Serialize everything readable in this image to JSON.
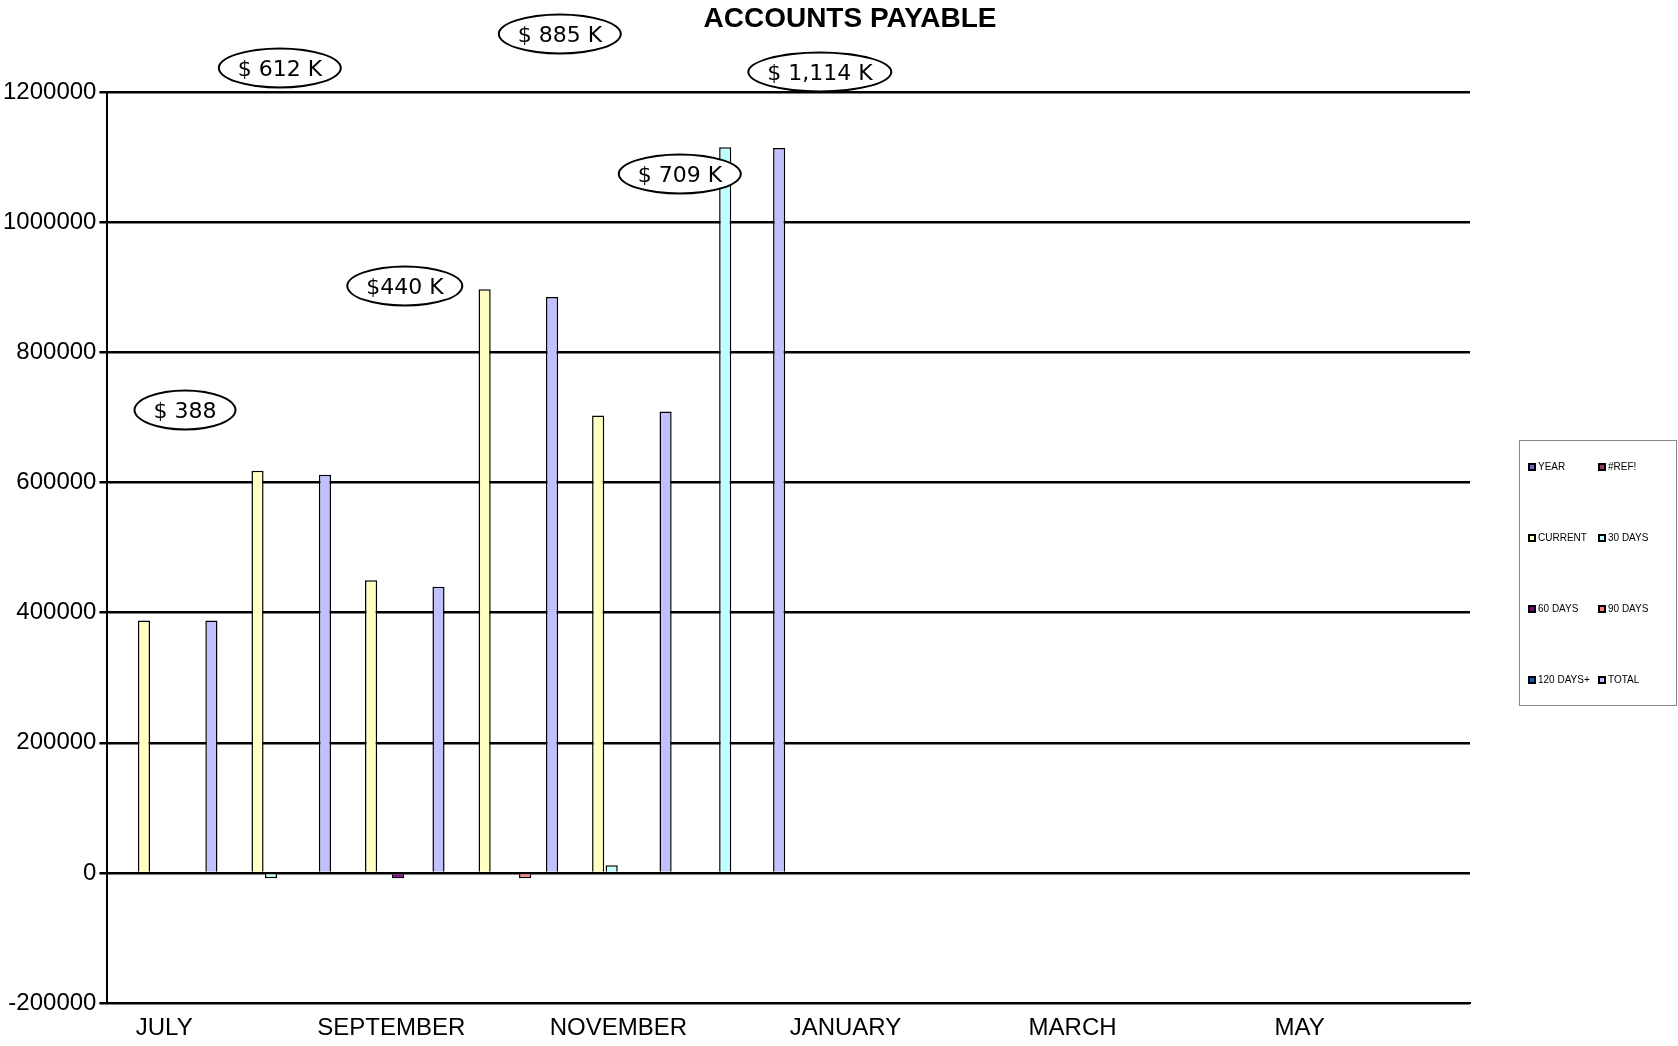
{
  "chart_data": {
    "type": "bar",
    "title": "ACCOUNTS PAYABLE",
    "categories": [
      "JULY",
      null,
      "SEPTEMBER",
      null,
      "NOVEMBER",
      null,
      "JANUARY",
      null,
      "MARCH",
      null,
      "MAY",
      null
    ],
    "series": [
      {
        "name": "YEAR",
        "color": "#6666cc",
        "values": [
          0,
          0,
          0,
          0,
          0,
          0,
          0,
          0,
          0,
          0,
          0,
          0
        ]
      },
      {
        "name": "#REF!",
        "color": "#993366",
        "values": [
          0,
          0,
          0,
          0,
          0,
          0,
          0,
          0,
          0,
          0,
          0,
          0
        ]
      },
      {
        "name": "CURRENT",
        "color": "#ffffc0",
        "values": [
          388000,
          618000,
          450000,
          897000,
          703000,
          0,
          0,
          0,
          0,
          0,
          0,
          0
        ]
      },
      {
        "name": "30 DAYS",
        "color": "#c0ffff",
        "values": [
          0,
          -8000,
          0,
          0,
          12000,
          1115000,
          0,
          0,
          0,
          0,
          0,
          0
        ]
      },
      {
        "name": "60 DAYS",
        "color": "#800080",
        "values": [
          0,
          0,
          -8000,
          0,
          0,
          0,
          0,
          0,
          0,
          0,
          0,
          0
        ]
      },
      {
        "name": "90 DAYS",
        "color": "#ff8080",
        "values": [
          0,
          0,
          0,
          -8000,
          0,
          0,
          0,
          0,
          0,
          0,
          0,
          0
        ]
      },
      {
        "name": "120 DAYS+",
        "color": "#0066cc",
        "values": [
          0,
          0,
          0,
          0,
          0,
          0,
          0,
          0,
          0,
          0,
          0,
          0
        ]
      },
      {
        "name": "TOTAL",
        "color": "#c0c0ff",
        "values": [
          388000,
          612000,
          440000,
          885000,
          709000,
          1114000,
          0,
          0,
          0,
          0,
          0,
          0
        ]
      }
    ],
    "ylim": [
      -200000,
      1200000
    ],
    "yticks": [
      -200000,
      0,
      200000,
      400000,
      600000,
      800000,
      1000000,
      1200000
    ],
    "grid": "y",
    "legend": "right",
    "annotations": [
      "$ 388",
      "$ 612 K",
      "$440 K",
      "$ 885 K",
      "$ 709 K",
      "$ 1,114 K"
    ]
  }
}
